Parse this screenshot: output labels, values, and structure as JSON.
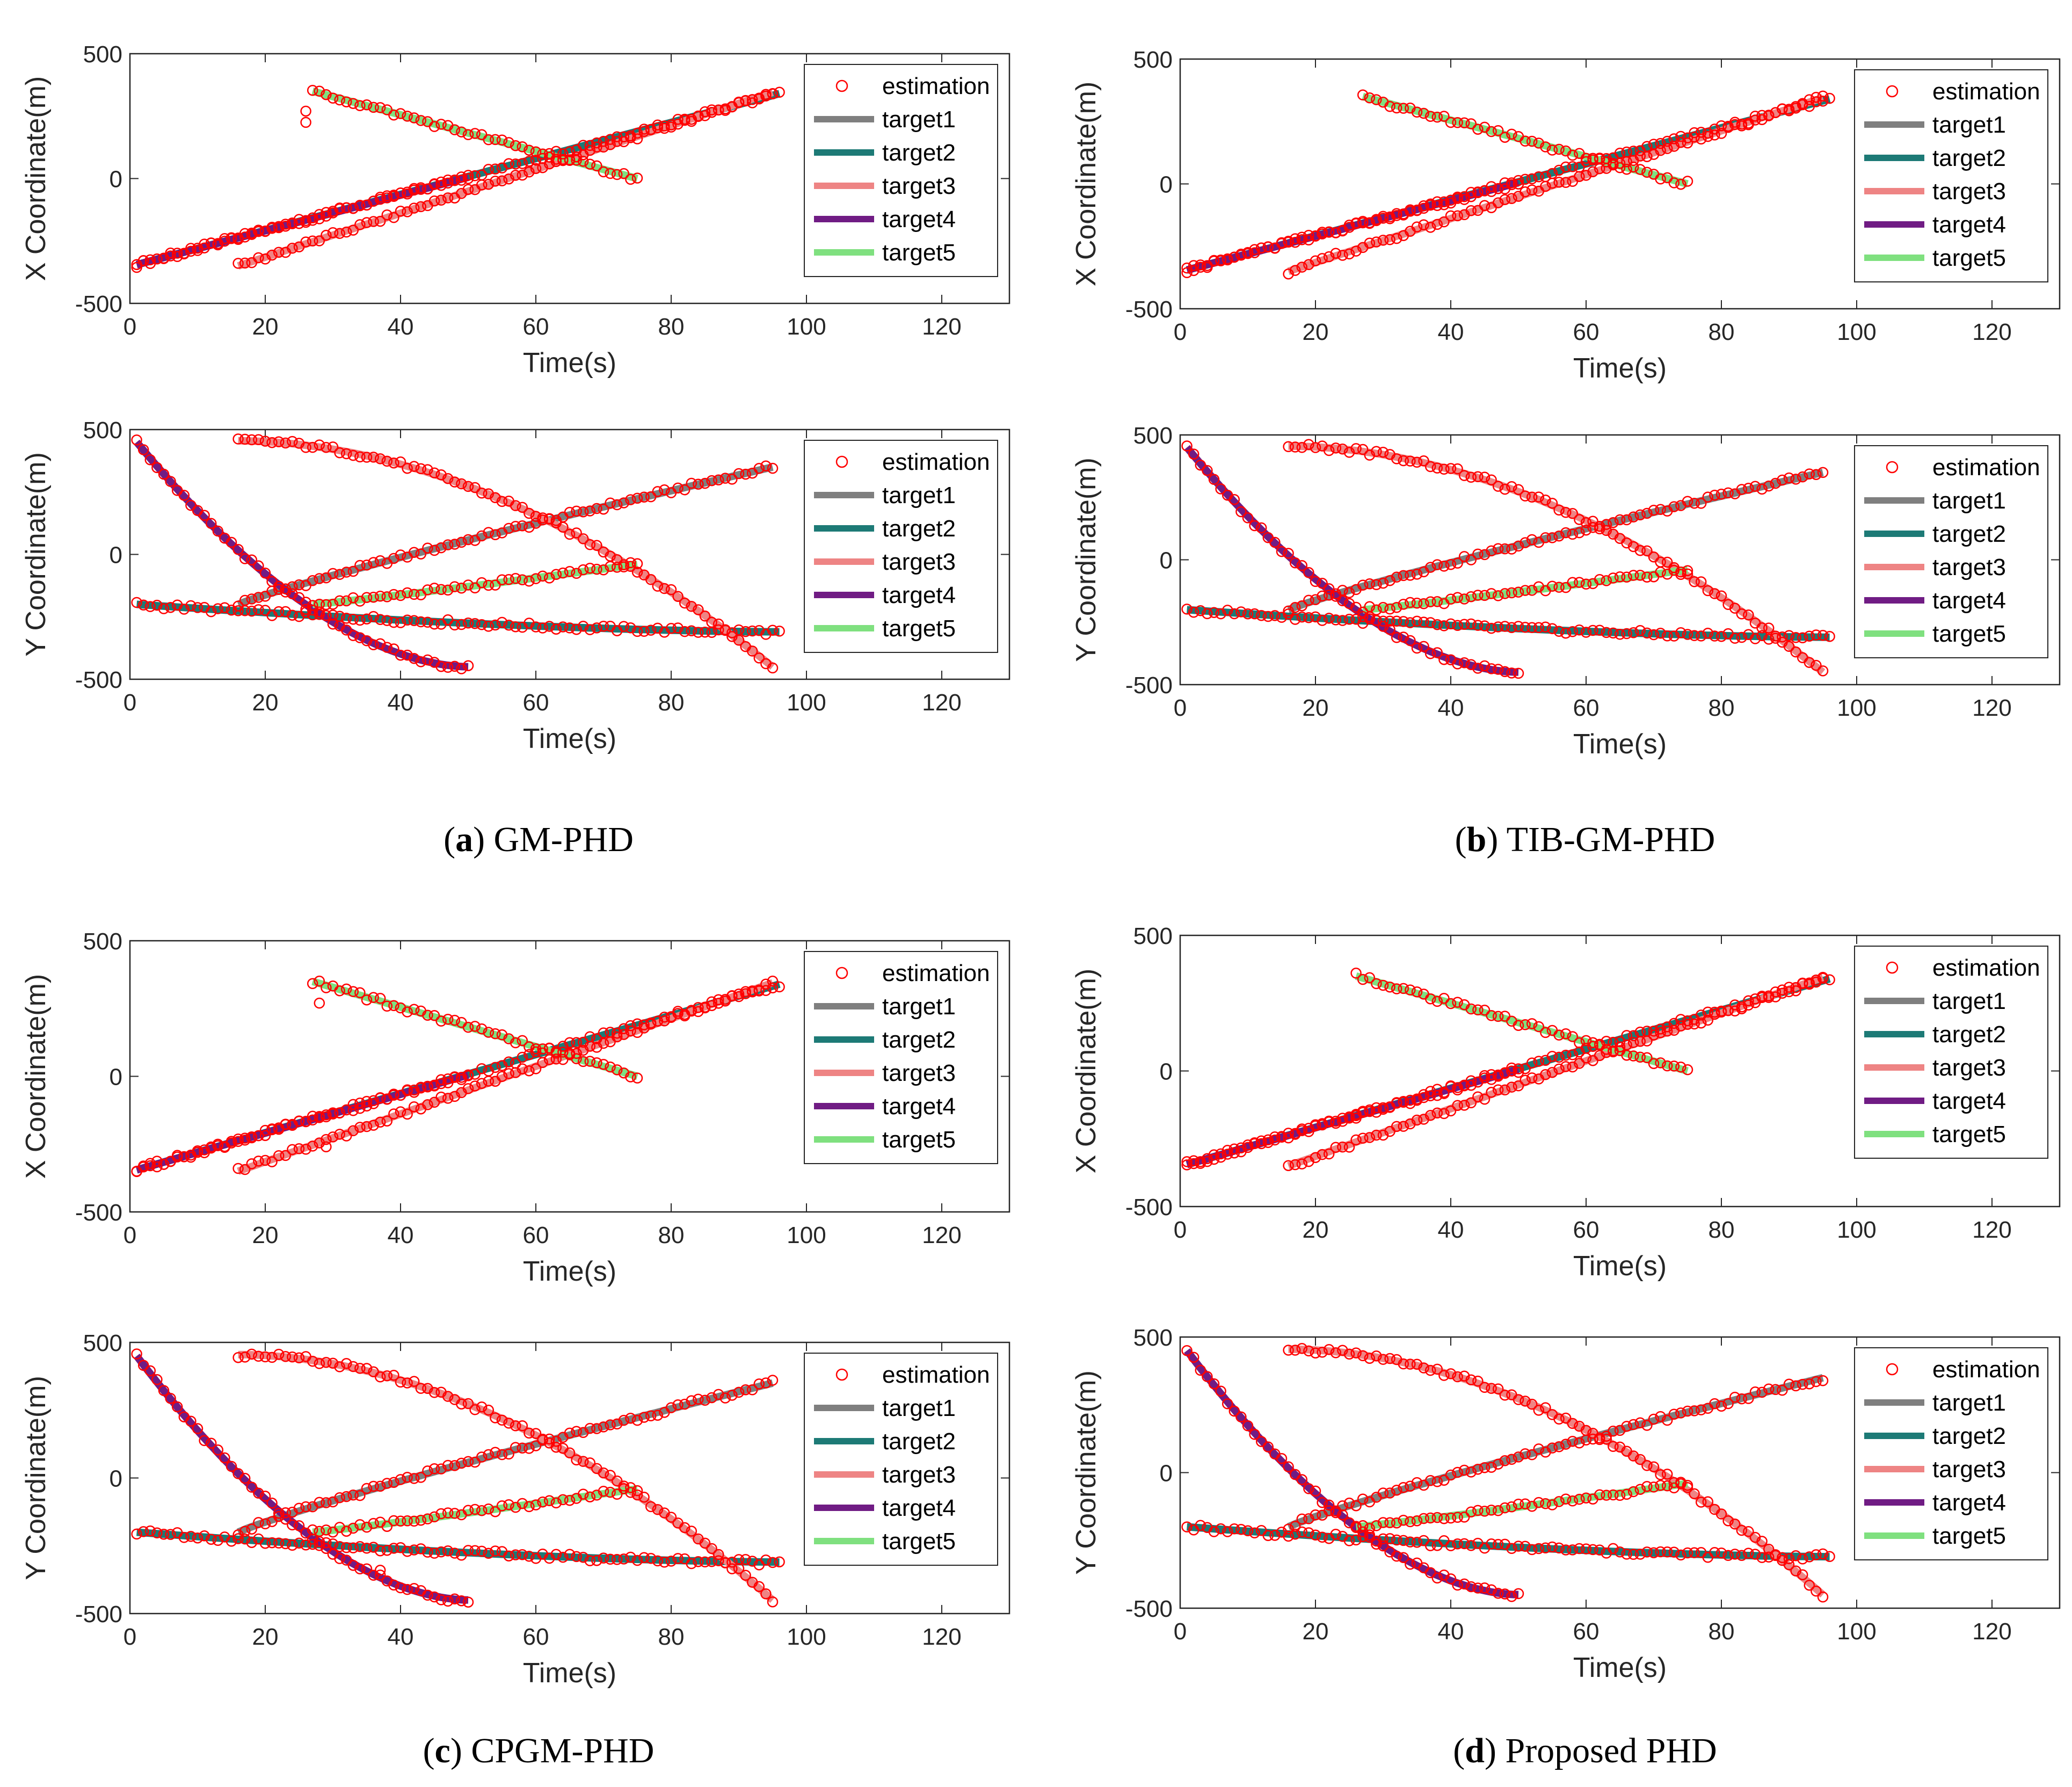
{
  "colors": {
    "estimation": "#ff0000",
    "target1": "#7f7f7f",
    "target2": "#1d7a76",
    "target3": "#ee8484",
    "target4": "#701c84",
    "target5": "#7fe07f"
  },
  "common": {
    "xlabel": "Time(s)",
    "ylabel_x": "X Coordinate(m)",
    "ylabel_y": "Y Coordinate(m)",
    "xlim": [
      0,
      130
    ],
    "ylim": [
      -500,
      500
    ],
    "xticks": [
      "0",
      "20",
      "40",
      "60",
      "80",
      "100",
      "120"
    ],
    "yticks": [
      "500",
      "0",
      "-500"
    ],
    "legend": [
      "estimation",
      "target1",
      "target2",
      "target3",
      "target4",
      "target5"
    ],
    "legend_location": "top-right"
  },
  "chart_data": [
    {
      "type": "line",
      "panel": "a",
      "coordinate": "X",
      "caption": {
        "label": "(a)",
        "letter": "a",
        "title": "GM-PHD"
      },
      "xlabel": "Time(s)",
      "ylabel": "X Coordinate(m)",
      "xlim": [
        0,
        130
      ],
      "ylim": [
        -500,
        500
      ],
      "series": [
        {
          "name": "target1",
          "t": [
            1,
            96
          ],
          "values": [
            -345,
            340
          ]
        },
        {
          "name": "target2",
          "t": [
            1,
            96
          ],
          "values": [
            -345,
            340
          ]
        },
        {
          "name": "target3",
          "t": [
            16,
            95
          ],
          "values": [
            -350,
            345
          ]
        },
        {
          "name": "target4",
          "t": [
            1,
            50
          ],
          "values": [
            -345,
            5
          ]
        },
        {
          "name": "target5",
          "t": [
            27,
            75
          ],
          "values": [
            350,
            0
          ]
        }
      ],
      "extra_estimates": [
        {
          "t": 26,
          "value": 270
        },
        {
          "t": 26,
          "value": 225
        }
      ]
    },
    {
      "type": "line",
      "panel": "a",
      "coordinate": "Y",
      "xlabel": "Time(s)",
      "ylabel": "Y Coordinate(m)",
      "xlim": [
        0,
        130
      ],
      "ylim": [
        -500,
        500
      ],
      "series": [
        {
          "name": "target1",
          "t": [
            16,
            95
          ],
          "values": [
            -200,
            350
          ]
        },
        {
          "name": "target2",
          "t": [
            1,
            96
          ],
          "values": [
            -200,
            -310
          ]
        },
        {
          "name": "target3",
          "t": [
            16,
            95
          ],
          "values": [
            455,
            -450
          ]
        },
        {
          "name": "target4",
          "t": [
            1,
            50
          ],
          "values": [
            450,
            -450
          ]
        },
        {
          "name": "target5",
          "t": [
            27,
            75
          ],
          "values": [
            -200,
            -40
          ]
        }
      ],
      "extra_estimates": [
        {
          "t": 26,
          "value": -220
        }
      ]
    },
    {
      "type": "line",
      "panel": "b",
      "coordinate": "X",
      "caption": {
        "label": "(b)",
        "letter": "b",
        "title": "TIB-GM-PHD"
      },
      "xlabel": "Time(s)",
      "ylabel": "X Coordinate(m)",
      "xlim": [
        0,
        130
      ],
      "ylim": [
        -500,
        500
      ],
      "series": [
        {
          "name": "target1",
          "t": [
            1,
            96
          ],
          "values": [
            -345,
            340
          ]
        },
        {
          "name": "target2",
          "t": [
            1,
            96
          ],
          "values": [
            -345,
            340
          ]
        },
        {
          "name": "target3",
          "t": [
            16,
            95
          ],
          "values": [
            -350,
            345
          ]
        },
        {
          "name": "target4",
          "t": [
            1,
            50
          ],
          "values": [
            -345,
            5
          ]
        },
        {
          "name": "target5",
          "t": [
            27,
            75
          ],
          "values": [
            350,
            0
          ]
        }
      ],
      "extra_estimates": []
    },
    {
      "type": "line",
      "panel": "b",
      "coordinate": "Y",
      "xlabel": "Time(s)",
      "ylabel": "Y Coordinate(m)",
      "xlim": [
        0,
        130
      ],
      "ylim": [
        -500,
        500
      ],
      "series": [
        {
          "name": "target1",
          "t": [
            16,
            95
          ],
          "values": [
            -200,
            350
          ]
        },
        {
          "name": "target2",
          "t": [
            1,
            96
          ],
          "values": [
            -200,
            -310
          ]
        },
        {
          "name": "target3",
          "t": [
            16,
            95
          ],
          "values": [
            455,
            -450
          ]
        },
        {
          "name": "target4",
          "t": [
            1,
            50
          ],
          "values": [
            450,
            -450
          ]
        },
        {
          "name": "target5",
          "t": [
            27,
            75
          ],
          "values": [
            -200,
            -40
          ]
        }
      ],
      "extra_estimates": []
    },
    {
      "type": "line",
      "panel": "c",
      "coordinate": "X",
      "caption": {
        "label": "(c)",
        "letter": "c",
        "title": "CPGM-PHD"
      },
      "xlabel": "Time(s)",
      "ylabel": "X Coordinate(m)",
      "xlim": [
        0,
        130
      ],
      "ylim": [
        -500,
        500
      ],
      "series": [
        {
          "name": "target1",
          "t": [
            1,
            96
          ],
          "values": [
            -345,
            340
          ]
        },
        {
          "name": "target2",
          "t": [
            1,
            96
          ],
          "values": [
            -345,
            340
          ]
        },
        {
          "name": "target3",
          "t": [
            16,
            95
          ],
          "values": [
            -350,
            345
          ]
        },
        {
          "name": "target4",
          "t": [
            1,
            50
          ],
          "values": [
            -345,
            5
          ]
        },
        {
          "name": "target5",
          "t": [
            27,
            75
          ],
          "values": [
            350,
            0
          ]
        }
      ],
      "extra_estimates": [
        {
          "t": 28,
          "value": 270
        },
        {
          "t": 29,
          "value": -260
        }
      ]
    },
    {
      "type": "line",
      "panel": "c",
      "coordinate": "Y",
      "xlabel": "Time(s)",
      "ylabel": "Y Coordinate(m)",
      "xlim": [
        0,
        130
      ],
      "ylim": [
        -500,
        500
      ],
      "series": [
        {
          "name": "target1",
          "t": [
            16,
            95
          ],
          "values": [
            -200,
            350
          ]
        },
        {
          "name": "target2",
          "t": [
            1,
            96
          ],
          "values": [
            -200,
            -310
          ]
        },
        {
          "name": "target3",
          "t": [
            16,
            95
          ],
          "values": [
            455,
            -450
          ]
        },
        {
          "name": "target4",
          "t": [
            1,
            50
          ],
          "values": [
            450,
            -450
          ]
        },
        {
          "name": "target5",
          "t": [
            27,
            75
          ],
          "values": [
            -200,
            -40
          ]
        }
      ],
      "extra_estimates": [
        {
          "t": 37,
          "value": -340
        }
      ]
    },
    {
      "type": "line",
      "panel": "d",
      "coordinate": "X",
      "caption": {
        "label": "(d)",
        "letter": "d",
        "title": "Proposed PHD"
      },
      "xlabel": "Time(s)",
      "ylabel": "X Coordinate(m)",
      "xlim": [
        0,
        130
      ],
      "ylim": [
        -500,
        500
      ],
      "series": [
        {
          "name": "target1",
          "t": [
            1,
            96
          ],
          "values": [
            -345,
            340
          ]
        },
        {
          "name": "target2",
          "t": [
            1,
            96
          ],
          "values": [
            -345,
            340
          ]
        },
        {
          "name": "target3",
          "t": [
            16,
            95
          ],
          "values": [
            -350,
            345
          ]
        },
        {
          "name": "target4",
          "t": [
            1,
            50
          ],
          "values": [
            -345,
            5
          ]
        },
        {
          "name": "target5",
          "t": [
            26,
            75
          ],
          "values": [
            350,
            0
          ]
        }
      ],
      "extra_estimates": [
        {
          "t": 26,
          "value": -160
        }
      ]
    },
    {
      "type": "line",
      "panel": "d",
      "coordinate": "Y",
      "xlabel": "Time(s)",
      "ylabel": "Y Coordinate(m)",
      "xlim": [
        0,
        130
      ],
      "ylim": [
        -500,
        500
      ],
      "series": [
        {
          "name": "target1",
          "t": [
            16,
            95
          ],
          "values": [
            -200,
            350
          ]
        },
        {
          "name": "target2",
          "t": [
            1,
            96
          ],
          "values": [
            -200,
            -310
          ]
        },
        {
          "name": "target3",
          "t": [
            16,
            95
          ],
          "values": [
            455,
            -450
          ]
        },
        {
          "name": "target4",
          "t": [
            1,
            50
          ],
          "values": [
            450,
            -450
          ]
        },
        {
          "name": "target5",
          "t": [
            26,
            75
          ],
          "values": [
            -200,
            -40
          ]
        }
      ],
      "extra_estimates": []
    }
  ]
}
